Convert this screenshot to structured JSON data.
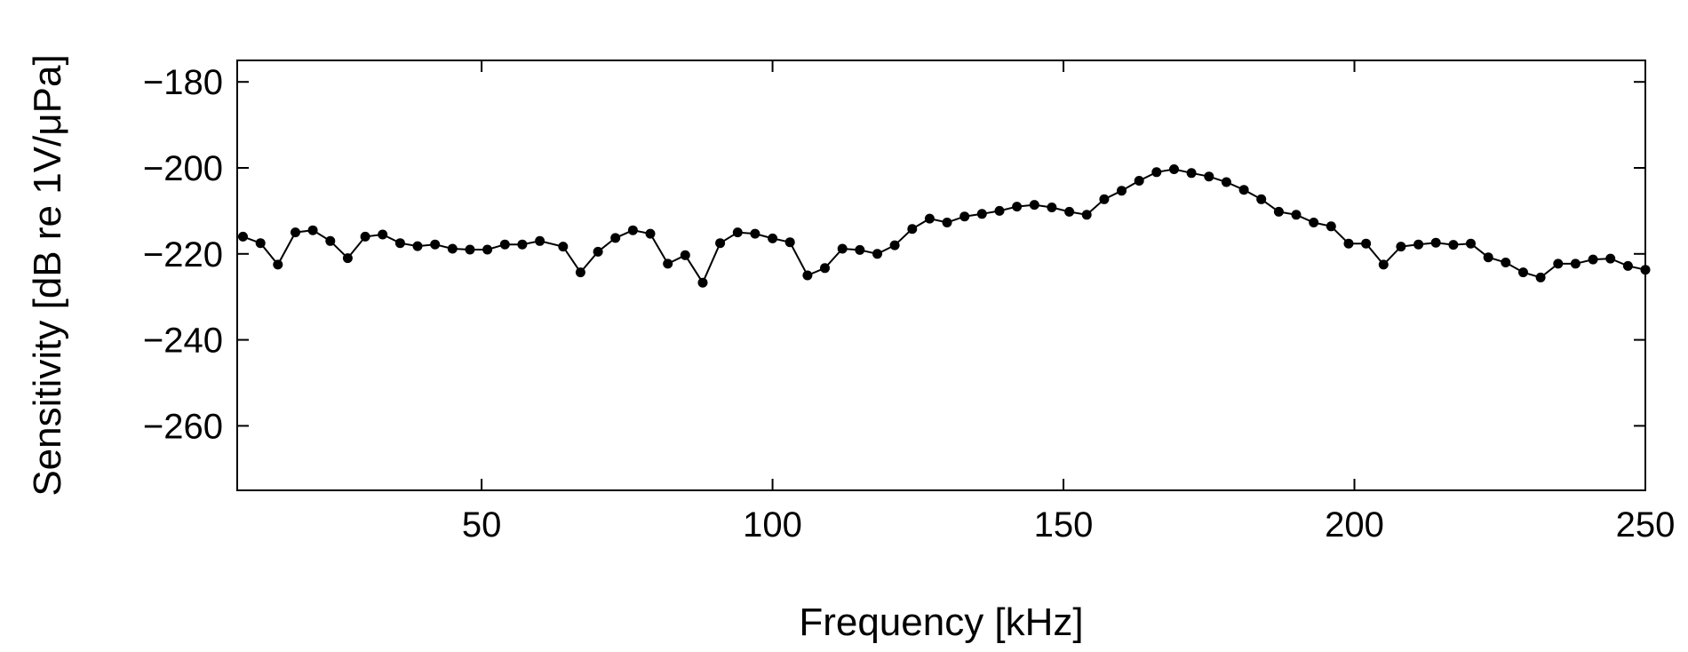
{
  "chart_data": {
    "type": "line",
    "title": "",
    "xlabel": "Frequency [kHz]",
    "ylabel": "Sensitivity [dB re 1V/μPa]",
    "xlim": [
      8,
      250
    ],
    "ylim": [
      -275,
      -175
    ],
    "xticks": [
      50,
      100,
      150,
      200,
      250
    ],
    "yticks": [
      -180,
      -200,
      -220,
      -240,
      -260
    ],
    "grid": false,
    "legend": "none",
    "line_color": "#000000",
    "series": [
      {
        "marker": "filled-circle",
        "x": [
          9,
          12,
          15,
          18,
          21,
          24,
          27,
          30,
          33,
          36,
          39,
          42,
          45,
          48,
          51,
          54,
          57,
          60,
          64,
          67,
          70,
          73,
          76,
          79,
          82,
          85,
          88,
          91,
          94,
          97,
          100,
          103,
          106,
          109,
          112,
          115,
          118,
          121,
          124,
          127,
          130,
          133,
          136,
          139,
          142,
          145,
          148,
          151,
          154,
          157,
          160,
          163,
          166,
          169,
          172,
          175,
          178,
          181,
          184,
          187,
          190,
          193,
          196,
          199,
          202,
          205,
          208,
          211,
          214,
          217,
          220,
          223,
          226,
          229,
          232,
          235,
          238,
          241,
          244,
          247,
          250
        ],
        "y": [
          -216,
          -217.5,
          -222.5,
          -215,
          -214.5,
          -217,
          -221,
          -216,
          -215.5,
          -217.5,
          -218.2,
          -217.8,
          -218.8,
          -219,
          -219,
          -217.8,
          -217.8,
          -217,
          -218.3,
          -224.3,
          -219.5,
          -216.3,
          -214.5,
          -215.3,
          -222.3,
          -220.3,
          -226.7,
          -217.5,
          -215,
          -215.3,
          -216.4,
          -217.3,
          -225,
          -223.3,
          -218.8,
          -219.1,
          -220,
          -218,
          -214.2,
          -211.8,
          -212.7,
          -211.3,
          -210.7,
          -210,
          -209,
          -208.6,
          -209.2,
          -210.2,
          -210.9,
          -207.3,
          -205.3,
          -203,
          -201,
          -200.3,
          -201.2,
          -202,
          -203.3,
          -205.1,
          -207.3,
          -210.2,
          -210.9,
          -212.7,
          -213.6,
          -217.6,
          -217.6,
          -222.5,
          -218.3,
          -217.8,
          -217.4,
          -217.9,
          -217.6,
          -220.8,
          -222,
          -224.3,
          -225.5,
          -222.3,
          -222.3,
          -221.3,
          -221.1,
          -222.8,
          -223.7
        ]
      }
    ]
  }
}
